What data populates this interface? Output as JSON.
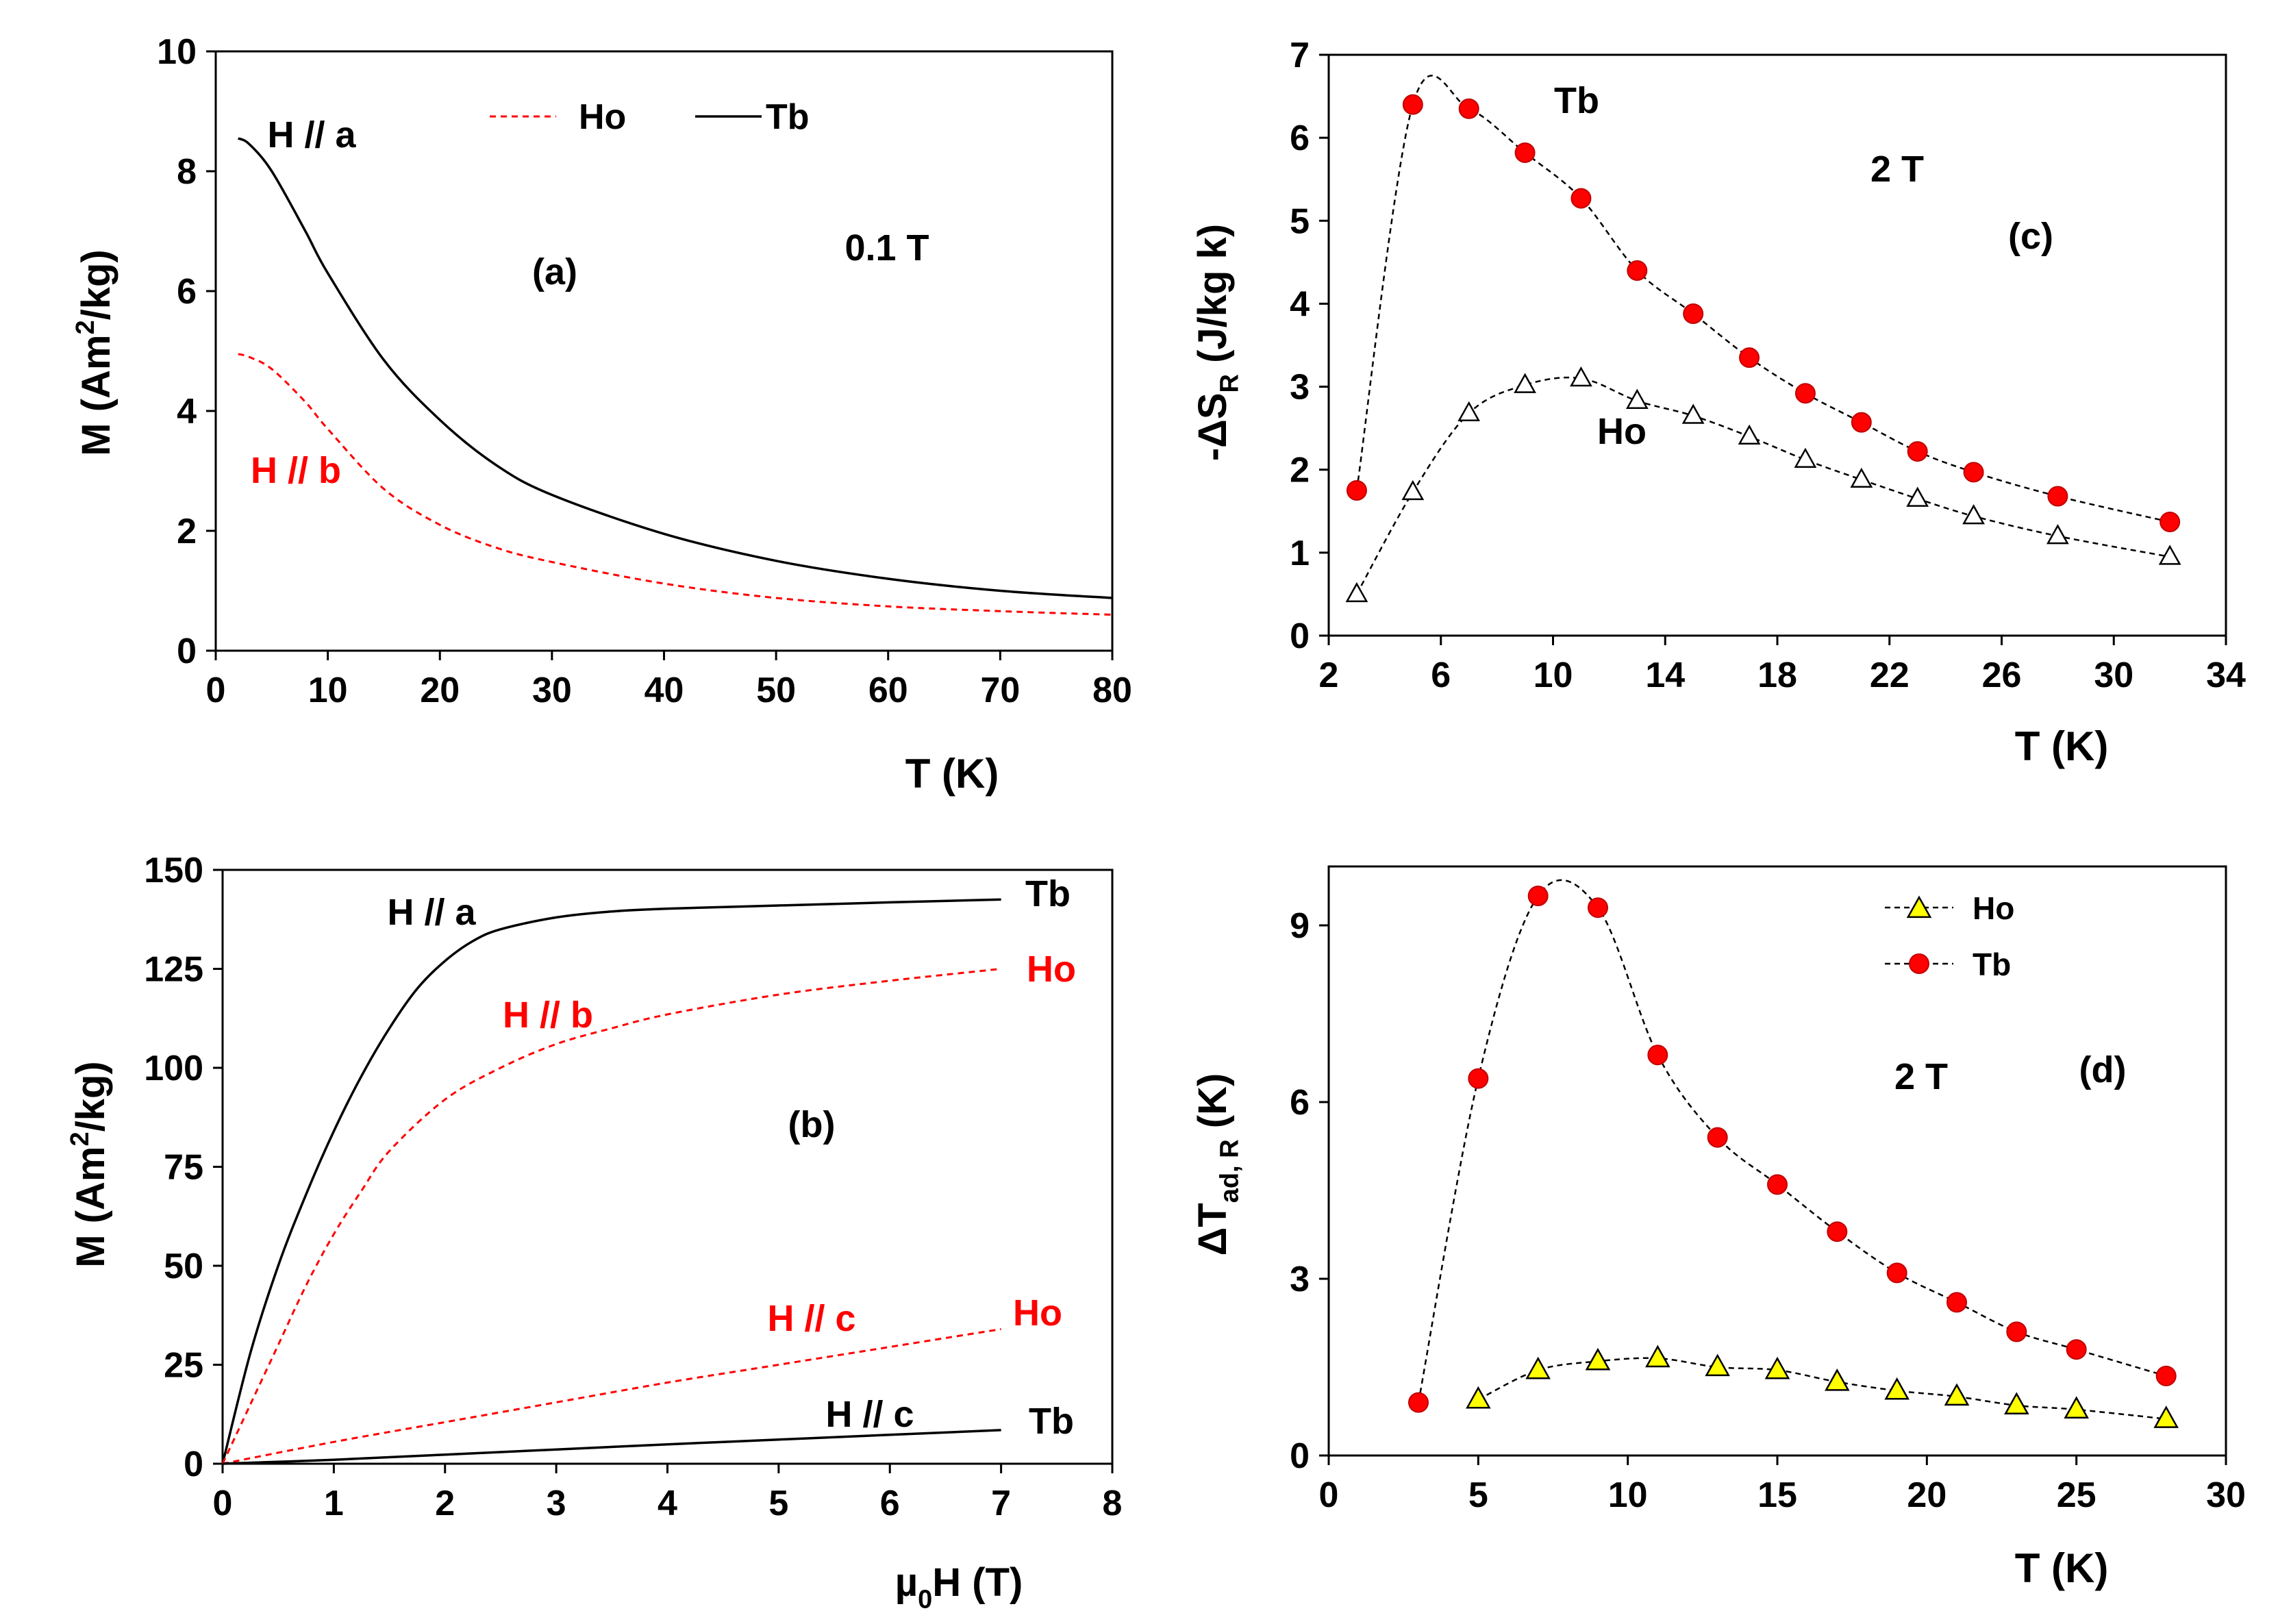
{
  "colors": {
    "ho": "#ff0000",
    "tb": "#000000",
    "axis": "#000000",
    "ho_marker_d": "#ffff00"
  },
  "chart_data": [
    {
      "id": "a",
      "type": "line",
      "panel_label": "(a)",
      "field_label": "0.1 T",
      "xlabel": "T (K)",
      "ylabel": "M (Am²/kg)",
      "ylabel_parts": [
        "M (Am",
        "2",
        "/kg)"
      ],
      "xlim": [
        0,
        80
      ],
      "ylim": [
        0,
        10
      ],
      "xticks": [
        0,
        10,
        20,
        30,
        40,
        50,
        60,
        70,
        80
      ],
      "yticks": [
        0,
        2,
        4,
        6,
        8,
        10
      ],
      "legend": {
        "position": "top-center",
        "entries": [
          {
            "name": "Ho",
            "style": "red dashed"
          },
          {
            "name": "Tb",
            "style": "black solid"
          }
        ]
      },
      "annotations": [
        "H // a",
        "H // b"
      ],
      "series": [
        {
          "name": "Tb",
          "style": "solid",
          "x": [
            2,
            3,
            5,
            8,
            10,
            15,
            20,
            25,
            30,
            40,
            50,
            60,
            70,
            80
          ],
          "y": [
            8.55,
            8.45,
            8.0,
            7.0,
            6.3,
            4.85,
            3.85,
            3.1,
            2.6,
            1.95,
            1.5,
            1.2,
            1.0,
            0.88
          ]
        },
        {
          "name": "Ho",
          "style": "dashed",
          "x": [
            2,
            3,
            5,
            8,
            10,
            15,
            20,
            25,
            30,
            40,
            50,
            60,
            70,
            80
          ],
          "y": [
            4.95,
            4.9,
            4.7,
            4.15,
            3.7,
            2.7,
            2.1,
            1.72,
            1.48,
            1.12,
            0.88,
            0.74,
            0.66,
            0.6
          ]
        }
      ]
    },
    {
      "id": "b",
      "type": "line",
      "panel_label": "(b)",
      "xlabel": "µ0H  (T)",
      "xlabel_parts": [
        "µ",
        "0",
        "H  (T)"
      ],
      "ylabel": "M (Am²/kg)",
      "ylabel_parts": [
        "M (Am",
        "2",
        "/kg)"
      ],
      "xlim": [
        0,
        8
      ],
      "ylim": [
        0,
        150
      ],
      "xticks": [
        0,
        1,
        2,
        3,
        4,
        5,
        6,
        7,
        8
      ],
      "yticks": [
        0,
        25,
        50,
        75,
        100,
        125,
        150
      ],
      "annotations": [
        "H // a",
        "H // b",
        "H // c",
        "H // c",
        "Tb",
        "Ho",
        "Ho",
        "Tb"
      ],
      "series": [
        {
          "name": "Tb H // a",
          "style": "solid",
          "x": [
            0,
            0.25,
            0.5,
            0.75,
            1.0,
            1.25,
            1.5,
            1.75,
            2.0,
            2.25,
            2.5,
            3.0,
            3.5,
            4.0,
            5.0,
            6.0,
            7.0
          ],
          "y": [
            0,
            28,
            50,
            68,
            84,
            98,
            110,
            120,
            127,
            132,
            135,
            138,
            139.5,
            140.2,
            141,
            141.8,
            142.5
          ]
        },
        {
          "name": "Ho H // b",
          "style": "dashed",
          "x": [
            0,
            0.25,
            0.5,
            0.75,
            1.0,
            1.25,
            1.5,
            2.0,
            2.5,
            3.0,
            3.5,
            4.0,
            5.0,
            6.0,
            7.0
          ],
          "y": [
            0,
            15,
            30,
            45,
            58,
            69,
            79,
            92,
            100,
            106,
            110,
            113.5,
            118.5,
            122,
            125
          ]
        },
        {
          "name": "Ho H // c",
          "style": "dashed",
          "x": [
            0,
            1,
            2,
            3,
            4,
            5,
            6,
            7
          ],
          "y": [
            0,
            5.5,
            10.5,
            15.5,
            20.5,
            25,
            29.5,
            34
          ]
        },
        {
          "name": "Tb H // c",
          "style": "solid",
          "x": [
            0,
            1,
            2,
            3,
            4,
            5,
            6,
            7
          ],
          "y": [
            0,
            1,
            2.3,
            3.6,
            4.9,
            6.1,
            7.3,
            8.5
          ]
        }
      ]
    },
    {
      "id": "c",
      "type": "scatter",
      "panel_label": "(c)",
      "field_label": "2 T",
      "xlabel": "T (K)",
      "ylabel": "-ΔSR (J/kg k)",
      "ylabel_parts": [
        "-ΔS",
        "R",
        " (J/kg k)"
      ],
      "xlim": [
        2,
        34
      ],
      "ylim": [
        0,
        7
      ],
      "xticks": [
        2,
        6,
        10,
        14,
        18,
        22,
        26,
        30,
        34
      ],
      "yticks": [
        0,
        1,
        2,
        3,
        4,
        5,
        6,
        7
      ],
      "annotations": [
        "Tb",
        "Ho"
      ],
      "series": [
        {
          "name": "Tb",
          "marker": "circle-red",
          "x": [
            3,
            5,
            7,
            9,
            11,
            13,
            15,
            17,
            19,
            21,
            23,
            25,
            28,
            32
          ],
          "y": [
            1.75,
            6.4,
            6.35,
            5.82,
            5.27,
            4.4,
            3.88,
            3.35,
            2.92,
            2.57,
            2.22,
            1.97,
            1.68,
            1.37
          ]
        },
        {
          "name": "Ho",
          "marker": "triangle-open",
          "x": [
            3,
            5,
            7,
            9,
            11,
            13,
            15,
            17,
            19,
            21,
            23,
            25,
            28,
            32
          ],
          "y": [
            0.5,
            1.73,
            2.68,
            3.02,
            3.1,
            2.83,
            2.65,
            2.4,
            2.12,
            1.88,
            1.65,
            1.44,
            1.2,
            0.95
          ]
        }
      ]
    },
    {
      "id": "d",
      "type": "scatter",
      "panel_label": "(d)",
      "field_label": "2 T",
      "xlabel": "T (K)",
      "ylabel": "ΔTad, R (K)",
      "ylabel_parts": [
        "ΔT",
        "ad, R",
        " (K)"
      ],
      "xlim": [
        0,
        30
      ],
      "ylim": [
        0,
        10
      ],
      "xticks": [
        0,
        5,
        10,
        15,
        20,
        25,
        30
      ],
      "yticks": [
        0,
        3,
        6,
        9
      ],
      "legend": {
        "position": "top-center",
        "entries": [
          {
            "name": "Ho",
            "marker": "triangle-yellow"
          },
          {
            "name": "Tb",
            "marker": "circle-red"
          }
        ]
      },
      "series": [
        {
          "name": "Tb",
          "marker": "circle-red",
          "x": [
            3,
            5,
            7,
            9,
            11,
            13,
            15,
            17,
            19,
            21,
            23,
            25,
            28
          ],
          "y": [
            0.9,
            6.4,
            9.5,
            9.3,
            6.8,
            5.4,
            4.6,
            3.8,
            3.1,
            2.6,
            2.1,
            1.8,
            1.35
          ]
        },
        {
          "name": "Ho",
          "marker": "triangle-yellow",
          "x": [
            5,
            7,
            9,
            11,
            13,
            15,
            17,
            19,
            21,
            23,
            25,
            28
          ],
          "y": [
            0.95,
            1.45,
            1.6,
            1.65,
            1.5,
            1.45,
            1.25,
            1.1,
            1.0,
            0.85,
            0.78,
            0.62
          ]
        }
      ]
    }
  ]
}
